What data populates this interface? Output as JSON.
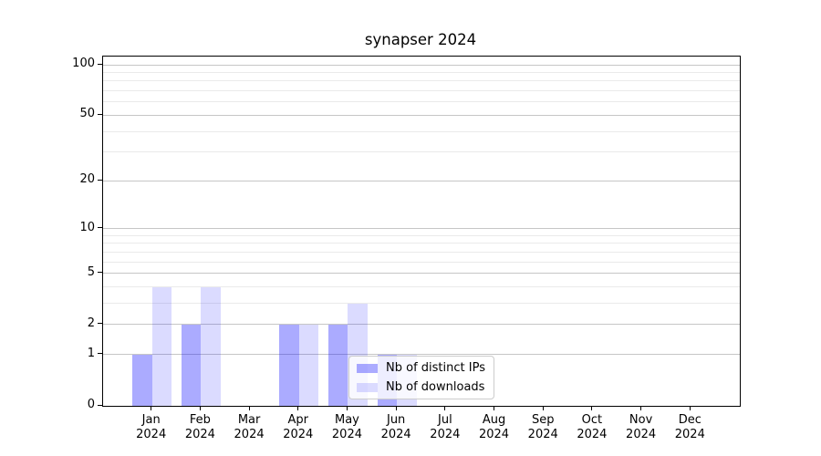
{
  "title": "synapser 2024",
  "chart_data": {
    "type": "bar",
    "title": "synapser 2024",
    "xlabel": "",
    "ylabel": "",
    "categories": [
      "Jan",
      "Feb",
      "Mar",
      "Apr",
      "May",
      "Jun",
      "Jul",
      "Aug",
      "Sep",
      "Oct",
      "Nov",
      "Dec"
    ],
    "category_year": "2024",
    "series": [
      {
        "name": "Nb of distinct IPs",
        "color_hex": "#0000ff",
        "alpha": 0.33,
        "fill": "rgba(0,0,255,0.33)",
        "values": [
          1,
          2,
          0,
          2,
          2,
          1,
          0,
          0,
          0,
          0,
          0,
          0
        ]
      },
      {
        "name": "Nb of downloads",
        "color_hex": "#0000ff",
        "alpha": 0.14,
        "fill": "rgba(0,0,255,0.14)",
        "values": [
          4,
          4,
          0,
          2,
          3,
          1,
          0,
          0,
          0,
          0,
          0,
          0
        ]
      }
    ],
    "yscale": "log1p",
    "yticks": [
      0,
      1,
      2,
      5,
      10,
      20,
      50,
      100
    ],
    "minor_yticks": [
      3,
      4,
      6,
      7,
      8,
      9,
      30,
      40,
      60,
      70,
      80,
      90
    ],
    "ylim": [
      0,
      112
    ],
    "grid": "on",
    "legend_position": "lower center",
    "grid_major_color": "#c6c6c6",
    "grid_minor_color": "#eaeaea"
  }
}
